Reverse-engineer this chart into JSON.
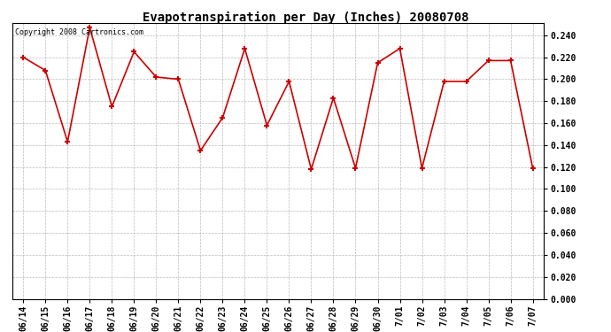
{
  "title": "Evapotranspiration per Day (Inches) 20080708",
  "copyright_text": "Copyright 2008 Cartronics.com",
  "dates": [
    "06/14",
    "06/15",
    "06/16",
    "06/17",
    "06/18",
    "06/19",
    "06/20",
    "06/21",
    "06/22",
    "06/23",
    "06/24",
    "06/25",
    "06/26",
    "06/27",
    "06/28",
    "06/29",
    "06/30",
    "7/01",
    "7/02",
    "7/03",
    "7/04",
    "7/05",
    "7/06",
    "7/07"
  ],
  "values": [
    0.22,
    0.208,
    0.143,
    0.247,
    0.175,
    0.225,
    0.202,
    0.2,
    0.135,
    0.165,
    0.228,
    0.158,
    0.198,
    0.118,
    0.183,
    0.119,
    0.215,
    0.228,
    0.119,
    0.198,
    0.198,
    0.217,
    0.217,
    0.119
  ],
  "ylim": [
    0.0,
    0.25
  ],
  "ytick_step": 0.02,
  "line_color": "#cc0000",
  "marker": "+",
  "marker_size": 5,
  "bg_color": "#ffffff",
  "plot_bg_color": "#ffffff",
  "grid_color": "#aaaaaa",
  "title_fontsize": 10,
  "tick_fontsize": 7,
  "copyright_fontsize": 6
}
